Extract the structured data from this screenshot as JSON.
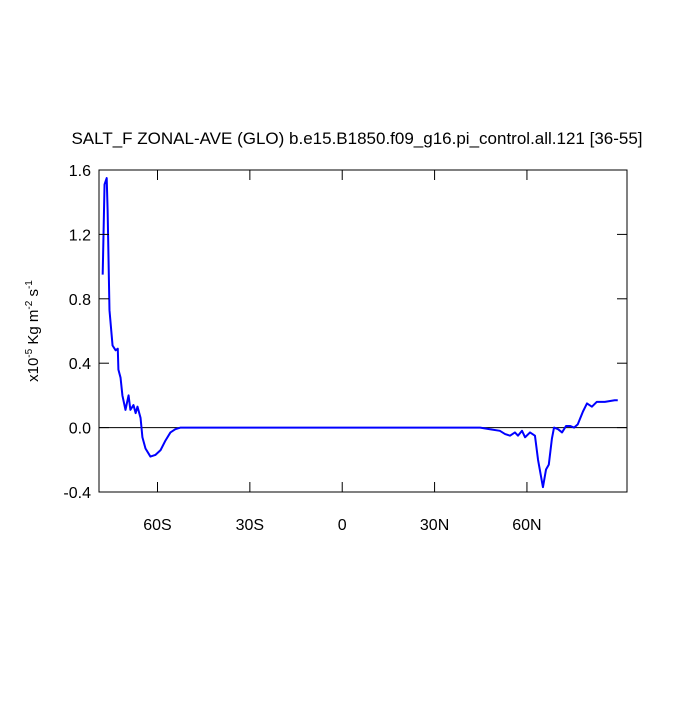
{
  "chart_data": {
    "type": "line",
    "title": "SALT_F ZONAL-AVE (GLO) b.e15.B1850.f09_g16.pi_control.all.121 [36-55]",
    "y_label": [
      "x10",
      "-5",
      " Kg m",
      "-2",
      " s",
      "-1"
    ],
    "xlim": [
      -79,
      92.5
    ],
    "ylim": [
      -0.4,
      1.6
    ],
    "xticks": [
      {
        "value": -60,
        "label": "60S"
      },
      {
        "value": -30,
        "label": "30S"
      },
      0,
      {
        "value": 30,
        "label": "30N"
      },
      {
        "value": 60,
        "label": "60N"
      }
    ],
    "yticks": [
      -0.4,
      {
        "value": 0,
        "label": "0.0"
      },
      0.4,
      0.8,
      1.2,
      1.6
    ],
    "reference_line": 0,
    "series": [
      {
        "color": "#0000ff",
        "x": [
          -77.8,
          -77.2,
          -76.5,
          -76.2,
          -75.6,
          -74.6,
          -73.6,
          -72.9,
          -72.7,
          -72.0,
          -71.4,
          -70.4,
          -69.4,
          -68.8,
          -67.8,
          -67.1,
          -66.5,
          -65.5,
          -64.9,
          -63.9,
          -62.3,
          -60.7,
          -59.0,
          -57.4,
          -55.8,
          -54.2,
          -52.5,
          44.8,
          48.0,
          51.2,
          52.9,
          54.5,
          56.1,
          57.1,
          58.4,
          59.4,
          61.0,
          62.6,
          63.6,
          65.2,
          66.2,
          67.1,
          68.1,
          68.8,
          70.1,
          71.4,
          72.7,
          74.0,
          75.3,
          76.5,
          78.2,
          79.5,
          81.1,
          82.7,
          85.3,
          88.5,
          89.5
        ],
        "values": [
          0.95,
          1.51,
          1.55,
          1.35,
          0.73,
          0.51,
          0.48,
          0.49,
          0.36,
          0.31,
          0.2,
          0.11,
          0.2,
          0.11,
          0.14,
          0.09,
          0.13,
          0.06,
          -0.06,
          -0.13,
          -0.18,
          -0.17,
          -0.14,
          -0.08,
          -0.03,
          -0.01,
          0,
          0,
          -0.01,
          -0.02,
          -0.04,
          -0.05,
          -0.03,
          -0.05,
          -0.02,
          -0.06,
          -0.03,
          -0.05,
          -0.2,
          -0.37,
          -0.26,
          -0.23,
          -0.07,
          0,
          -0.01,
          -0.03,
          0.01,
          0.01,
          0,
          0.02,
          0.1,
          0.15,
          0.13,
          0.16,
          0.16,
          0.17,
          0.17
        ]
      }
    ]
  }
}
